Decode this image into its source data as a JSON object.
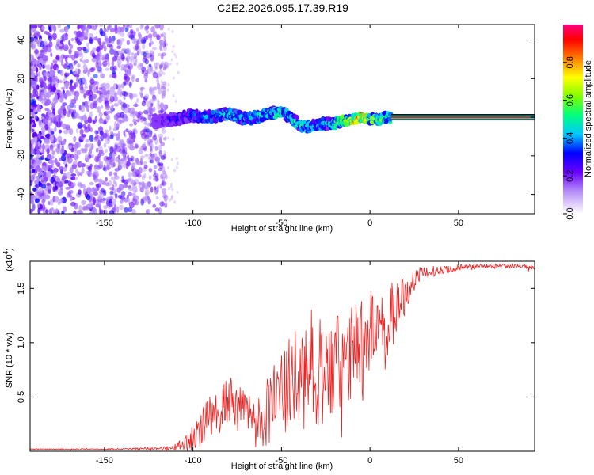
{
  "title": "C2E2.2026.095.17.39.R19",
  "top_panel": {
    "xlabel": "Height of straight line (km)",
    "ylabel": "Frequency (Hz)",
    "xticks": [
      "-150",
      "-100",
      "-50",
      "0",
      "50"
    ],
    "yticks": [
      "-40",
      "-20",
      "0",
      "20",
      "40"
    ],
    "colorbar_label": "Normalized spectral amplitude",
    "colorbar_ticks": [
      "0.0",
      "0.2",
      "0.4",
      "0.6",
      "0.8"
    ]
  },
  "bottom_panel": {
    "xlabel": "Height of straight line (km)",
    "ylabel": "SNR (10 * v/v)",
    "multiplier_base": "(x10",
    "multiplier_exp": "4",
    "multiplier_close": ")",
    "xticks": [
      "-150",
      "-100",
      "-50",
      "0",
      "50"
    ],
    "yticks": [
      "0.5",
      "1.0",
      "1.5"
    ]
  },
  "colors": {
    "snr_line": "#ee2222",
    "noise_dot": "#7b2cf0",
    "background": "#ffffff"
  },
  "chart_data": [
    {
      "type": "heatmap",
      "title": "C2E2.2026.095.17.39.R19",
      "xlabel": "Height of straight line (km)",
      "ylabel": "Frequency (Hz)",
      "xlim": [
        -192,
        93
      ],
      "ylim": [
        -50,
        48
      ],
      "colorbar": {
        "label": "Normalized spectral amplitude",
        "range": [
          0,
          1
        ]
      },
      "signal_trace": {
        "x": [
          -120,
          -110,
          -100,
          -90,
          -80,
          -70,
          -60,
          -50,
          -45,
          -40,
          -35,
          -30,
          -25,
          -20,
          -15,
          -10,
          -5,
          0,
          5,
          10,
          20,
          40,
          60,
          80,
          93
        ],
        "frequency": [
          -2,
          -1,
          1,
          0,
          2,
          -1,
          1,
          3,
          0,
          -4,
          -5,
          -4,
          -3,
          -3,
          -2,
          -1,
          0,
          -1,
          -1,
          0,
          0,
          0,
          0,
          0,
          0
        ],
        "amplitude": [
          0.2,
          0.3,
          0.35,
          0.4,
          0.45,
          0.4,
          0.45,
          0.5,
          0.45,
          0.5,
          0.45,
          0.45,
          0.4,
          0.5,
          0.6,
          0.7,
          0.8,
          0.6,
          0.6,
          0.5,
          0.8,
          0.85,
          0.85,
          0.85,
          0.85
        ]
      },
      "noise_region": {
        "x_range": [
          -192,
          -115
        ],
        "frequency_range": [
          -50,
          48
        ],
        "amplitude_range": [
          0.0,
          0.2
        ]
      }
    },
    {
      "type": "line",
      "xlabel": "Height of straight line (km)",
      "ylabel": "SNR (10 * v/v)",
      "xlim": [
        -192,
        93
      ],
      "ylim": [
        0,
        1.75
      ],
      "y_multiplier": "x10^4",
      "series": [
        {
          "name": "SNR",
          "x": [
            -192,
            -150,
            -120,
            -110,
            -105,
            -100,
            -95,
            -90,
            -85,
            -80,
            -75,
            -70,
            -65,
            -60,
            -55,
            -50,
            -45,
            -40,
            -35,
            -30,
            -25,
            -20,
            -15,
            -10,
            -5,
            0,
            5,
            10,
            15,
            20,
            25,
            30,
            40,
            50,
            60,
            70,
            80,
            93
          ],
          "values": [
            0.02,
            0.02,
            0.03,
            0.05,
            0.08,
            0.15,
            0.25,
            0.35,
            0.45,
            0.5,
            0.45,
            0.4,
            0.35,
            0.4,
            0.5,
            0.6,
            0.7,
            0.75,
            0.85,
            0.9,
            0.8,
            0.85,
            0.9,
            1.0,
            1.1,
            1.2,
            1.25,
            1.3,
            1.4,
            1.5,
            1.6,
            1.65,
            1.68,
            1.7,
            1.71,
            1.71,
            1.71,
            1.7
          ],
          "amplitude": [
            0.005,
            0.005,
            0.01,
            0.03,
            0.06,
            0.12,
            0.18,
            0.22,
            0.25,
            0.25,
            0.22,
            0.2,
            0.25,
            0.3,
            0.35,
            0.4,
            0.45,
            0.5,
            0.55,
            0.55,
            0.5,
            0.5,
            0.5,
            0.45,
            0.4,
            0.35,
            0.3,
            0.3,
            0.25,
            0.2,
            0.12,
            0.06,
            0.04,
            0.03,
            0.02,
            0.02,
            0.02,
            0.02
          ]
        }
      ]
    }
  ]
}
